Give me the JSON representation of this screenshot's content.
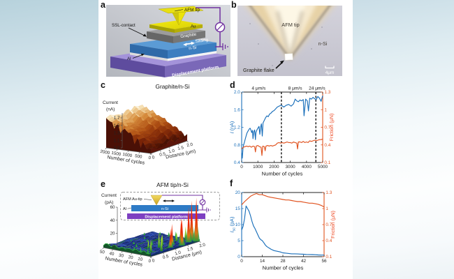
{
  "colors": {
    "line_blue": "#1a6fba",
    "line_orange": "#e0511d",
    "friction_label": "#ee4d28",
    "wire_purple": "#7030a0",
    "figure_background": "#ffffff"
  },
  "panels": {
    "a": {
      "label": "a",
      "afm_tip": "AFM tip",
      "ssl_contact": "SSL-contact",
      "au": "Au",
      "graphite": "Graphite",
      "sliding": "Sliding",
      "n_si": "n-Si",
      "al": "Al",
      "platform": "Displacement platform"
    },
    "b": {
      "label": "b",
      "afm_tip": "AFM tip",
      "n_si": "n-Si",
      "flake": "Graphite flake",
      "scale_bar": "4μm"
    },
    "c": {
      "label": "c"
    },
    "d": {
      "label": "d"
    },
    "e": {
      "label": "e",
      "inset": {
        "afm_au_tip": "AFM Au-tip",
        "al": "Al",
        "n_si": "n-Si",
        "platform": "Displacement platform"
      }
    },
    "f": {
      "label": "f"
    }
  },
  "chart_data": [
    {
      "panel": "c",
      "type": "surface3d",
      "title": "Graphite/n-Si",
      "z_label_line1": "Current",
      "z_label_line2": "(nA)",
      "z_ticks": [
        "1.7",
        "1.5",
        "1.3",
        "1.1",
        "0.9"
      ],
      "z_range_nA": [
        0.9,
        1.7
      ],
      "cycles_label": "Number of cycles",
      "cycles_ticks": [
        "2000",
        "1500",
        "1000",
        "500",
        "0"
      ],
      "cycles_range": [
        0,
        2000
      ],
      "distance_label": "Distance (μm)",
      "distance_ticks": [
        "0",
        "0.5",
        "1.0",
        "1.5",
        "2.0"
      ],
      "distance_range_um": [
        0,
        2
      ],
      "colormap": "copper-like (dark red low, cream high)",
      "note": "current increases with sliding cycles",
      "current_vs_cycles_nA": {
        "cycles": [
          0,
          100,
          200,
          300,
          400,
          500,
          600,
          700,
          800,
          900,
          1000,
          1100,
          1200,
          1300,
          1400,
          1500,
          1600,
          1700,
          1800,
          1900,
          2000
        ],
        "current": [
          1.05,
          1.0,
          1.08,
          1.14,
          1.18,
          1.22,
          1.26,
          1.24,
          1.31,
          1.36,
          1.4,
          1.44,
          1.47,
          1.45,
          1.52,
          1.56,
          1.6,
          1.58,
          1.64,
          1.67,
          1.7
        ]
      }
    },
    {
      "panel": "d",
      "type": "line",
      "x_label": "Number of cycles",
      "x_range": [
        0,
        5000
      ],
      "x_ticks": [
        "0",
        "1000",
        "2000",
        "3000",
        "4000",
        "5000"
      ],
      "left_axis": {
        "label": "I (nA)",
        "parts": [
          {
            "t": "I",
            "i": 1
          },
          {
            "t": " (nA)"
          }
        ],
        "range": [
          0.4,
          2.0
        ],
        "ticks": [
          "2.0",
          "1.6",
          "1.2",
          "0.8",
          "0.4"
        ]
      },
      "right_axis": {
        "label": "Friction (μN)",
        "parts": [
          {
            "t": "Friction (μN)"
          }
        ],
        "range": [
          0.1,
          1.3
        ],
        "ticks": [
          "1.3",
          "1",
          "0.7",
          "0.4",
          "0.1"
        ]
      },
      "annotations": [
        {
          "text": "4 μm/s",
          "x": 1050
        },
        {
          "text": "8 μm/s",
          "x": 3300
        },
        {
          "text": "24 μm/s",
          "x": 4650
        }
      ],
      "dashed_lines_x": [
        2450,
        4580
      ],
      "series": [
        {
          "name": "current",
          "axis": "left",
          "unit": "nA",
          "x": [
            0,
            40,
            80,
            120,
            170,
            220,
            270,
            320,
            370,
            420,
            470,
            520,
            570,
            620,
            670,
            700,
            750,
            800,
            850,
            880,
            920,
            970,
            1020,
            1070,
            1120,
            1170,
            1220,
            1270,
            1320,
            1400,
            1480,
            1560,
            1640,
            1720,
            1800,
            1900,
            2000,
            2100,
            2200,
            2300,
            2450,
            2600,
            2750,
            2900,
            3050,
            3200,
            3300,
            3400,
            3500,
            3600,
            3700,
            3800,
            3850,
            3950,
            4050,
            4120,
            4200,
            4300,
            4400,
            4500,
            4600,
            4700,
            4800,
            4900,
            5000
          ],
          "y": [
            0.62,
            0.5,
            0.72,
            0.8,
            0.86,
            0.93,
            1.0,
            1.06,
            1.1,
            1.13,
            1.16,
            1.18,
            1.14,
            1.08,
            1.13,
            0.94,
            1.1,
            1.14,
            0.92,
            1.08,
            1.12,
            1.16,
            1.19,
            1.22,
            1.04,
            1.2,
            1.28,
            1.0,
            1.3,
            1.36,
            1.42,
            1.46,
            1.44,
            1.5,
            1.52,
            1.56,
            1.58,
            1.62,
            1.66,
            1.68,
            1.7,
            1.66,
            1.7,
            1.72,
            1.68,
            1.73,
            1.84,
            1.8,
            1.78,
            1.82,
            1.8,
            1.83,
            1.46,
            1.84,
            1.8,
            1.57,
            1.86,
            1.84,
            1.88,
            1.85,
            1.83,
            1.9,
            1.86,
            1.79,
            1.92
          ]
        },
        {
          "name": "friction",
          "axis": "right",
          "unit": "μN",
          "x": [
            0,
            100,
            200,
            300,
            400,
            500,
            600,
            700,
            800,
            850,
            900,
            1000,
            1100,
            1200,
            1250,
            1300,
            1400,
            1450,
            1500,
            1600,
            1700,
            1800,
            1900,
            2000,
            2100,
            2200,
            2300,
            2400,
            2500,
            2600,
            2700,
            2800,
            2900,
            3000,
            3100,
            3200,
            3300,
            3400,
            3450,
            3500,
            3600,
            3700,
            3800,
            3900,
            4000,
            4100,
            4200,
            4300,
            4400,
            4500,
            4600,
            4700,
            4800,
            4900,
            5000
          ],
          "y": [
            0.33,
            0.36,
            0.37,
            0.38,
            0.37,
            0.38,
            0.36,
            0.38,
            0.37,
            0.28,
            0.38,
            0.39,
            0.37,
            0.36,
            0.22,
            0.38,
            0.37,
            0.3,
            0.38,
            0.39,
            0.38,
            0.39,
            0.38,
            0.39,
            0.4,
            0.43,
            0.44,
            0.43,
            0.44,
            0.43,
            0.44,
            0.45,
            0.44,
            0.44,
            0.43,
            0.45,
            0.44,
            0.43,
            0.33,
            0.45,
            0.45,
            0.44,
            0.46,
            0.44,
            0.45,
            0.44,
            0.47,
            0.46,
            0.47,
            0.48,
            0.47,
            0.48,
            0.49,
            0.49,
            0.5
          ]
        }
      ]
    },
    {
      "panel": "e",
      "type": "surface3d",
      "title": "AFM tip/n-Si",
      "z_label_line1": "Current",
      "z_label_line2": "(pA)",
      "z_ticks": [
        "60",
        "40",
        "20",
        "0"
      ],
      "z_range_pA": [
        0,
        70
      ],
      "cycles_label": "Number of cycles",
      "cycles_ticks": [
        "50",
        "40",
        "30",
        "20",
        "10",
        "0"
      ],
      "cycles_range": [
        0,
        50
      ],
      "distance_label": "Distance (μm)",
      "distance_ticks": [
        "0",
        "0.5",
        "1.0",
        "1.5",
        "2.0"
      ],
      "distance_range_um": [
        0,
        2
      ],
      "colormap": "jet-like (blue base, green noise, red spikes)",
      "note": "large current spikes occur during the first ~15 cycles, then current nearly vanishes",
      "base_level_pA": 2,
      "spikes": [
        {
          "cycle": 1,
          "dist": 1.9,
          "pA": 68
        },
        {
          "cycle": 4,
          "dist": 1.7,
          "pA": 55
        },
        {
          "cycle": 2,
          "dist": 1.35,
          "pA": 42
        },
        {
          "cycle": 6,
          "dist": 1.9,
          "pA": 62
        },
        {
          "cycle": 8,
          "dist": 1.55,
          "pA": 38
        },
        {
          "cycle": 5,
          "dist": 1.0,
          "pA": 30
        },
        {
          "cycle": 10,
          "dist": 1.25,
          "pA": 33
        },
        {
          "cycle": 12,
          "dist": 0.8,
          "pA": 24
        },
        {
          "cycle": 3,
          "dist": 0.55,
          "pA": 26
        },
        {
          "cycle": 15,
          "dist": 1.05,
          "pA": 18
        },
        {
          "cycle": 9,
          "dist": 0.35,
          "pA": 20
        },
        {
          "cycle": 18,
          "dist": 0.6,
          "pA": 14
        },
        {
          "cycle": 11,
          "dist": 1.85,
          "pA": 22
        }
      ],
      "minor_bumps": [
        {
          "cycle": 22,
          "dist": 0.9,
          "pA": 10
        },
        {
          "cycle": 25,
          "dist": 1.4,
          "pA": 8
        },
        {
          "cycle": 20,
          "dist": 1.8,
          "pA": 12
        },
        {
          "cycle": 28,
          "dist": 0.5,
          "pA": 7
        },
        {
          "cycle": 32,
          "dist": 1.1,
          "pA": 6
        },
        {
          "cycle": 36,
          "dist": 0.7,
          "pA": 5
        },
        {
          "cycle": 30,
          "dist": 1.9,
          "pA": 7
        },
        {
          "cycle": 40,
          "dist": 1.3,
          "pA": 5
        },
        {
          "cycle": 14,
          "dist": 1.6,
          "pA": 15
        },
        {
          "cycle": 16,
          "dist": 0.2,
          "pA": 9
        },
        {
          "cycle": 24,
          "dist": 0.25,
          "pA": 6
        },
        {
          "cycle": 44,
          "dist": 0.9,
          "pA": 4
        },
        {
          "cycle": 48,
          "dist": 1.6,
          "pA": 5
        },
        {
          "cycle": 38,
          "dist": 1.85,
          "pA": 6
        },
        {
          "cycle": 7,
          "dist": 0.15,
          "pA": 12
        }
      ]
    },
    {
      "panel": "f",
      "type": "line",
      "x_label": "Number of cycles",
      "x_range": [
        0,
        56
      ],
      "x_ticks": [
        "0",
        "14",
        "28",
        "42",
        "56"
      ],
      "left_axis": {
        "label": "Isc (pA)",
        "parts": [
          {
            "t": "I",
            "i": 1
          },
          {
            "t": "sc",
            "sub": 1
          },
          {
            "t": " (pA)",
            "dy": -1.8
          }
        ],
        "range": [
          0,
          20
        ],
        "ticks": [
          "20",
          "15",
          "10",
          "5",
          "0"
        ]
      },
      "right_axis": {
        "label": "Friction (μN)",
        "parts": [
          {
            "t": "Friction (μN)"
          }
        ],
        "range": [
          0.1,
          1.3
        ],
        "ticks": [
          "1.3",
          "1",
          "0.7",
          "0.4",
          "0.1"
        ]
      },
      "series": [
        {
          "name": "short-circuit-current",
          "axis": "left",
          "unit": "pA",
          "x": [
            0,
            1,
            2,
            3,
            4,
            5,
            6,
            7,
            8,
            9,
            10,
            11,
            12,
            13,
            14,
            15,
            16,
            17,
            18,
            19,
            20,
            22,
            24,
            26,
            28,
            30,
            32,
            34,
            36,
            38,
            40,
            42,
            44,
            46,
            48,
            50,
            52,
            54,
            56
          ],
          "y": [
            8.3,
            9.5,
            12.0,
            15.8,
            15.0,
            14.2,
            12.8,
            11.0,
            9.6,
            8.8,
            7.8,
            6.8,
            5.8,
            5.3,
            5.0,
            4.4,
            3.7,
            3.2,
            2.9,
            2.6,
            2.3,
            1.9,
            1.7,
            1.5,
            1.2,
            1.1,
            1.0,
            0.9,
            0.9,
            0.85,
            0.8,
            0.75,
            0.7,
            0.68,
            0.65,
            0.6,
            0.55,
            0.5,
            0.5
          ]
        },
        {
          "name": "friction",
          "axis": "right",
          "unit": "μN",
          "x": [
            0,
            2,
            4,
            6,
            8,
            10,
            11,
            12,
            14,
            16,
            18,
            20,
            22,
            24,
            26,
            28,
            30,
            32,
            34,
            36,
            38,
            40,
            42,
            44,
            46,
            48,
            50,
            52,
            54,
            56
          ],
          "y": [
            1.07,
            1.13,
            1.18,
            1.23,
            1.26,
            1.28,
            1.27,
            1.26,
            1.26,
            1.24,
            1.22,
            1.21,
            1.2,
            1.19,
            1.18,
            1.17,
            1.16,
            1.16,
            1.15,
            1.14,
            1.13,
            1.13,
            1.12,
            1.11,
            1.1,
            1.1,
            1.09,
            1.08,
            1.06,
            1.03
          ]
        }
      ]
    }
  ]
}
